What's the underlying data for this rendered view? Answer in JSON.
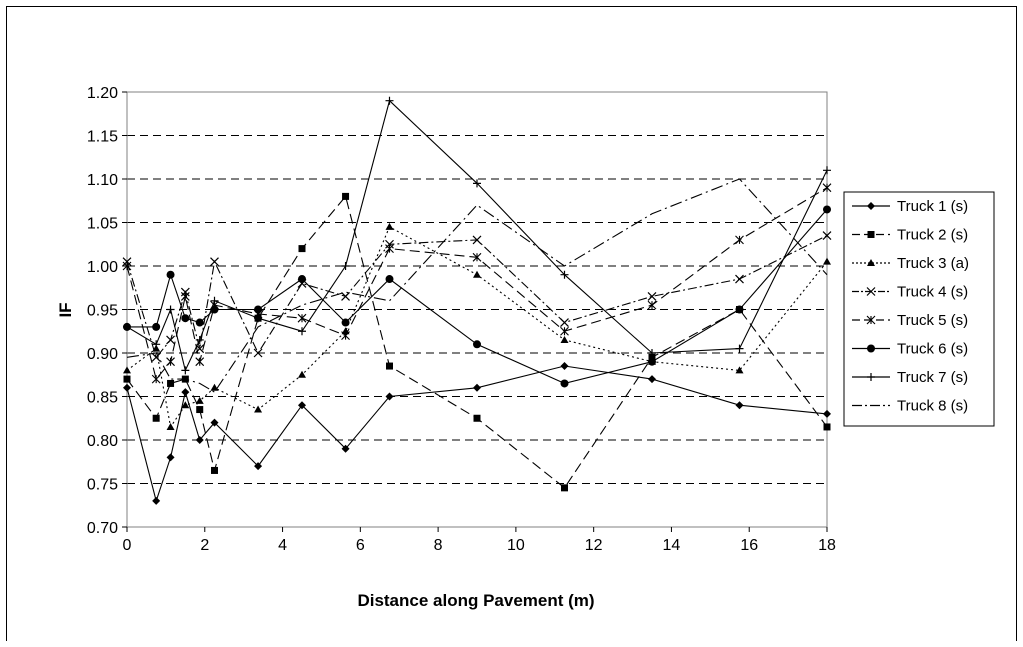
{
  "chart_data": {
    "type": "line",
    "xlabel": "Distance along Pavement (m)",
    "ylabel": "IF",
    "xlim": [
      0,
      18
    ],
    "ylim": [
      0.7,
      1.2
    ],
    "x_ticks": [
      "0",
      "2",
      "4",
      "6",
      "8",
      "10",
      "12",
      "14",
      "16",
      "18"
    ],
    "y_ticks": [
      "0.70",
      "0.75",
      "0.80",
      "0.85",
      "0.90",
      "0.95",
      "1.00",
      "1.05",
      "1.10",
      "1.15",
      "1.20"
    ],
    "grid": "horizontal dashed",
    "legend_position": "right",
    "series": [
      {
        "name": "Truck 1 (s)",
        "marker": "diamond",
        "dash": "",
        "x": [
          0,
          0.75,
          1.12,
          1.5,
          1.87,
          2.25,
          3.37,
          4.5,
          5.62,
          6.75,
          9.0,
          11.25,
          13.5,
          15.75,
          18.0
        ],
        "values": [
          0.86,
          0.73,
          0.78,
          0.855,
          0.8,
          0.82,
          0.77,
          0.84,
          0.79,
          0.85,
          0.86,
          0.885,
          0.87,
          0.84,
          0.83
        ]
      },
      {
        "name": "Truck 2 (s)",
        "marker": "square",
        "dash": "10,5",
        "x": [
          0,
          0.75,
          1.12,
          1.5,
          1.87,
          2.25,
          3.37,
          4.5,
          5.62,
          6.75,
          9.0,
          11.25,
          13.5,
          15.75,
          18.0
        ],
        "values": [
          0.87,
          0.825,
          0.865,
          0.87,
          0.835,
          0.765,
          0.94,
          1.02,
          1.08,
          0.885,
          0.825,
          0.745,
          0.895,
          0.95,
          0.815
        ]
      },
      {
        "name": "Truck 3 (a)",
        "marker": "triangle",
        "dash": "2,3",
        "x": [
          0,
          0.75,
          1.12,
          1.5,
          1.87,
          2.25,
          3.37,
          4.5,
          5.62,
          6.75,
          9.0,
          11.25,
          13.5,
          15.75,
          18.0
        ],
        "values": [
          0.88,
          0.905,
          0.815,
          0.84,
          0.845,
          0.86,
          0.835,
          0.875,
          0.925,
          1.045,
          0.99,
          0.915,
          0.89,
          0.88,
          1.005
        ]
      },
      {
        "name": "Truck 4 (s)",
        "marker": "x",
        "dash": "9,3,2,3",
        "x": [
          0,
          0.75,
          1.12,
          1.5,
          1.87,
          2.25,
          3.37,
          4.5,
          5.62,
          6.75,
          9.0,
          11.25,
          13.5,
          15.75,
          18.0
        ],
        "values": [
          1.005,
          0.895,
          0.915,
          0.97,
          0.905,
          1.005,
          0.9,
          0.98,
          0.965,
          1.025,
          1.03,
          0.935,
          0.965,
          0.985,
          1.035
        ]
      },
      {
        "name": "Truck 5 (s)",
        "marker": "star",
        "dash": "10,5",
        "x": [
          0,
          0.75,
          1.12,
          1.5,
          1.87,
          2.25,
          3.37,
          4.5,
          5.62,
          6.75,
          9.0,
          11.25,
          13.5,
          15.75,
          18.0
        ],
        "values": [
          1.0,
          0.87,
          0.89,
          0.965,
          0.89,
          0.955,
          0.945,
          0.94,
          0.92,
          1.02,
          1.01,
          0.925,
          0.955,
          1.03,
          1.09
        ]
      },
      {
        "name": "Truck 6 (s)",
        "marker": "circle",
        "dash": "",
        "x": [
          0,
          0.75,
          1.12,
          1.5,
          1.87,
          2.25,
          3.37,
          4.5,
          5.62,
          6.75,
          9.0,
          11.25,
          13.5,
          15.75,
          18.0
        ],
        "values": [
          0.93,
          0.93,
          0.99,
          0.94,
          0.935,
          0.95,
          0.95,
          0.985,
          0.935,
          0.985,
          0.91,
          0.865,
          0.89,
          0.95,
          1.065
        ]
      },
      {
        "name": "Truck 7 (s)",
        "marker": "plus",
        "dash": "",
        "x": [
          0,
          0.75,
          1.12,
          1.5,
          1.87,
          2.25,
          3.37,
          4.5,
          5.62,
          6.75,
          9.0,
          11.25,
          13.5,
          15.75,
          18.0
        ],
        "values": [
          0.93,
          0.91,
          0.95,
          0.88,
          0.915,
          0.96,
          0.94,
          0.925,
          1.0,
          1.19,
          1.095,
          0.99,
          0.9,
          0.905,
          1.11
        ]
      },
      {
        "name": "Truck 8 (s)",
        "marker": "none",
        "dash": "12,4,2,4",
        "x": [
          0,
          0.75,
          1.12,
          1.5,
          1.87,
          2.25,
          3.37,
          4.5,
          5.62,
          6.75,
          9.0,
          11.25,
          13.5,
          15.75,
          18.0
        ],
        "values": [
          0.895,
          0.9,
          0.87,
          0.87,
          0.865,
          0.855,
          0.93,
          0.955,
          0.97,
          0.96,
          1.07,
          1.0,
          1.06,
          1.1,
          0.99
        ]
      }
    ]
  }
}
